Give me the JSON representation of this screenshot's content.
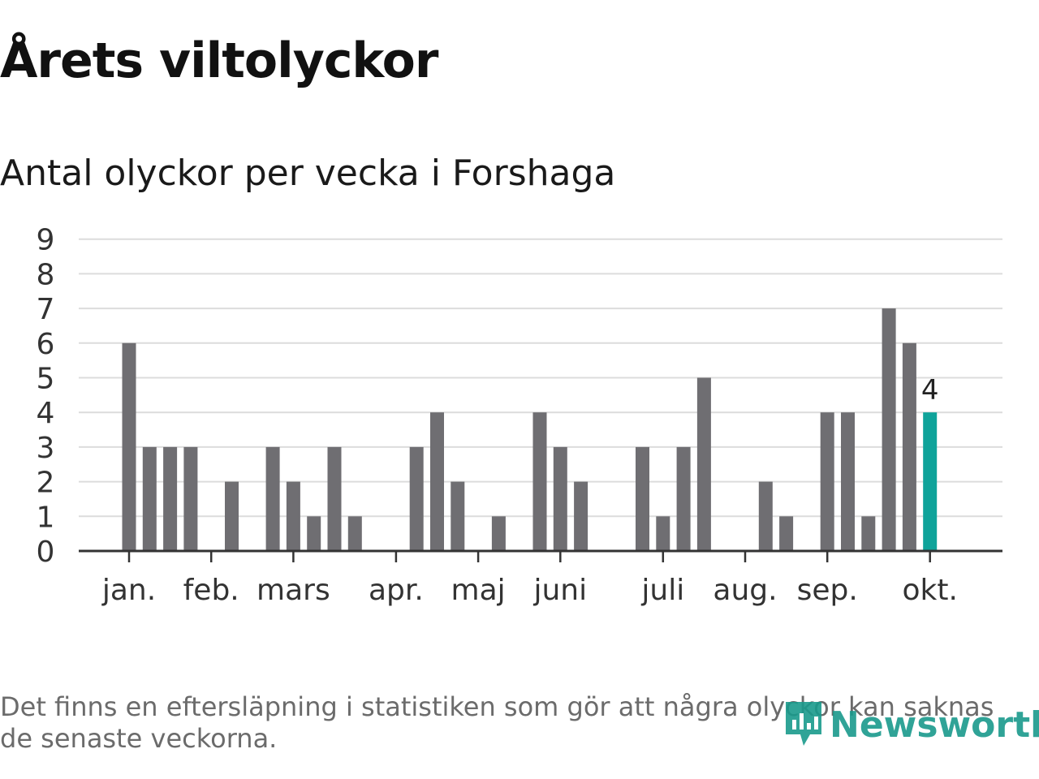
{
  "title": "Årets viltolyckor",
  "subtitle": "Antal olyckor per vecka i Forshaga",
  "footnote": "Det finns en eftersläpning i statistiken som gör att några olyckor kan saknas de senaste veckorna.",
  "logo": {
    "text": "Newsworthy",
    "icon": "newsworthy-logo-icon"
  },
  "colors": {
    "bar": "#6f6e72",
    "highlight": "#0fa39a",
    "grid": "#dcdcdc",
    "axis": "#333333"
  },
  "chart_data": {
    "type": "bar",
    "title": "Årets viltolyckor",
    "subtitle": "Antal olyckor per vecka i Forshaga",
    "xlabel": "",
    "ylabel": "",
    "ylim": [
      0,
      9
    ],
    "yticks": [
      "0",
      "1",
      "2",
      "3",
      "4",
      "5",
      "6",
      "7",
      "8",
      "9"
    ],
    "grid": true,
    "x_tick_labels": [
      {
        "label": "jan.",
        "week": 1
      },
      {
        "label": "feb.",
        "week": 5
      },
      {
        "label": "mars",
        "week": 9
      },
      {
        "label": "apr.",
        "week": 14
      },
      {
        "label": "maj",
        "week": 18
      },
      {
        "label": "juni",
        "week": 22
      },
      {
        "label": "juli",
        "week": 27
      },
      {
        "label": "aug.",
        "week": 31
      },
      {
        "label": "sep.",
        "week": 35
      },
      {
        "label": "okt.",
        "week": 40
      }
    ],
    "weeks": [
      1,
      2,
      3,
      4,
      5,
      6,
      7,
      8,
      9,
      10,
      11,
      12,
      13,
      14,
      15,
      16,
      17,
      18,
      19,
      20,
      21,
      22,
      23,
      24,
      25,
      26,
      27,
      28,
      29,
      30,
      31,
      32,
      33,
      34,
      35,
      36,
      37,
      38,
      39,
      40
    ],
    "values": [
      6,
      3,
      3,
      3,
      0,
      2,
      0,
      3,
      2,
      1,
      3,
      1,
      0,
      0,
      3,
      4,
      2,
      0,
      1,
      0,
      4,
      3,
      2,
      0,
      0,
      3,
      1,
      3,
      5,
      0,
      0,
      2,
      1,
      0,
      4,
      4,
      1,
      7,
      6,
      4
    ],
    "highlight_index": 39,
    "data_labels": [
      {
        "index": 39,
        "text": "4"
      }
    ]
  }
}
